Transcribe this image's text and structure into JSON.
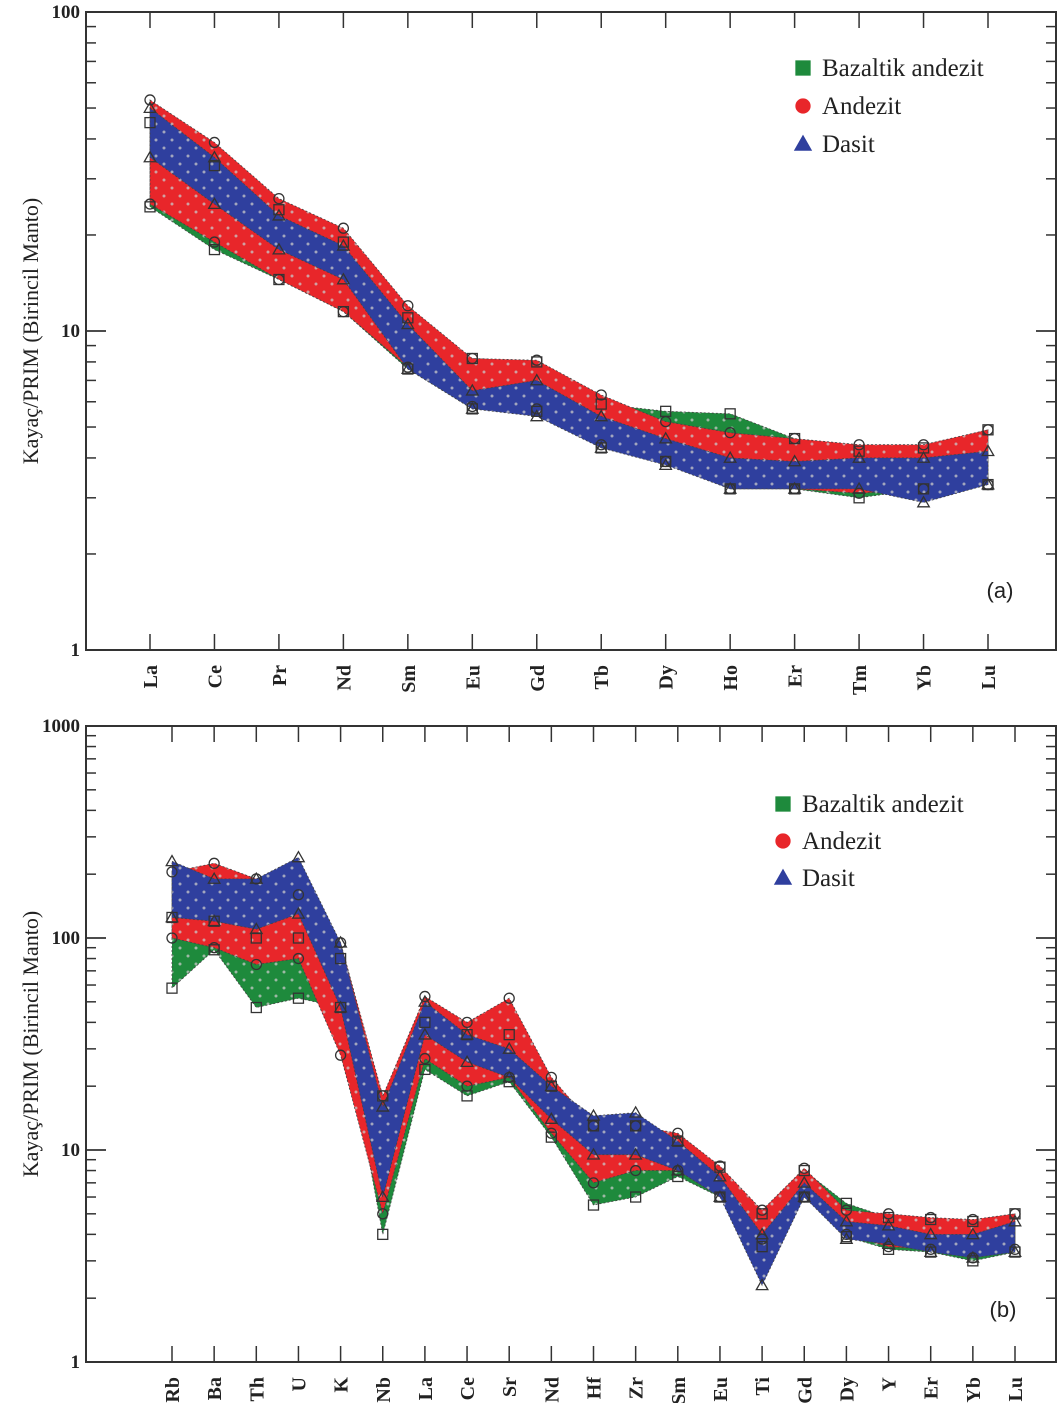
{
  "colors": {
    "green": "#1e8a3c",
    "red": "#e8262a",
    "blue": "#2f3f9e",
    "dot": "#c8c8c8",
    "axis": "#333333"
  },
  "chart_data": [
    {
      "type": "area",
      "panel_label": "(a)",
      "ylabel": "Kayaç/PRIM (Birincil Manto)",
      "xlabel": "",
      "yscale": "log",
      "ylim": [
        1,
        100
      ],
      "ytick_labels": [
        "1",
        "10",
        "100"
      ],
      "categories": [
        "La",
        "Ce",
        "Pr",
        "Nd",
        "Sm",
        "Eu",
        "Gd",
        "Tb",
        "Dy",
        "Ho",
        "Er",
        "Tm",
        "Yb",
        "Lu"
      ],
      "legend_position": "top-right",
      "series": [
        {
          "name": "Bazaltik andezit",
          "color": "green",
          "marker": "square",
          "min": [
            24.5,
            18,
            14.5,
            11.5,
            7.6,
            5.7,
            5.6,
            4.3,
            3.9,
            3.2,
            3.2,
            3.0,
            3.2,
            3.3
          ],
          "max": [
            45,
            33,
            24,
            19,
            11,
            8.2,
            8.0,
            5.9,
            5.6,
            5.5,
            4.6,
            4.2,
            4.3,
            4.9
          ]
        },
        {
          "name": "Andezit",
          "color": "red",
          "marker": "circle",
          "min": [
            25,
            19,
            14.5,
            11.5,
            7.7,
            5.8,
            5.7,
            4.4,
            3.9,
            3.2,
            3.2,
            3.1,
            3.2,
            3.3
          ],
          "max": [
            53,
            39,
            26,
            21,
            12,
            8.2,
            8.1,
            6.3,
            5.2,
            4.8,
            4.6,
            4.4,
            4.4,
            4.9
          ]
        },
        {
          "name": "Dasit",
          "color": "blue",
          "marker": "triangle",
          "min": [
            35,
            25,
            18,
            14.5,
            7.6,
            5.7,
            5.4,
            4.3,
            3.8,
            3.2,
            3.2,
            3.2,
            2.9,
            3.3
          ],
          "max": [
            50,
            35,
            23,
            18.5,
            10.5,
            6.5,
            7.0,
            5.4,
            4.6,
            4.0,
            3.9,
            4.0,
            4.0,
            4.2
          ]
        }
      ]
    },
    {
      "type": "area",
      "panel_label": "(b)",
      "ylabel": "Kayaç/PRIM (Birincil Manto)",
      "xlabel": "",
      "yscale": "log",
      "ylim": [
        1,
        1000
      ],
      "ytick_labels": [
        "1",
        "10",
        "100",
        "1000"
      ],
      "categories": [
        "Rb",
        "Ba",
        "Th",
        "U",
        "K",
        "Nb",
        "La",
        "Ce",
        "Sr",
        "Nd",
        "Hf",
        "Zr",
        "Sm",
        "Eu",
        "Ti",
        "Gd",
        "Dy",
        "Y",
        "Er",
        "Yb",
        "Lu"
      ],
      "legend_position": "top-right",
      "series": [
        {
          "name": "Bazaltik andezit",
          "color": "green",
          "marker": "square",
          "min": [
            58,
            88,
            47,
            52,
            47,
            4,
            24,
            18,
            21,
            11.5,
            5.5,
            6.0,
            7.5,
            6.0,
            3.5,
            6.0,
            3.9,
            3.4,
            3.3,
            3.0,
            3.3
          ],
          "max": [
            125,
            120,
            100,
            100,
            80,
            18,
            40,
            35,
            35,
            20,
            13,
            13,
            11,
            8.3,
            5.0,
            8.0,
            5.6,
            4.8,
            4.7,
            4.6,
            5.0
          ]
        },
        {
          "name": "Andezit",
          "color": "red",
          "marker": "circle",
          "min": [
            100,
            90,
            75,
            80,
            28,
            5,
            27,
            20,
            22,
            12,
            7,
            8,
            8,
            6,
            3.8,
            6,
            4.0,
            3.5,
            3.4,
            3.1,
            3.4
          ],
          "max": [
            205,
            225,
            190,
            160,
            95,
            18,
            53,
            40,
            52,
            22,
            13,
            13,
            12,
            8.4,
            5.2,
            8.2,
            5.2,
            5.0,
            4.8,
            4.7,
            5.0
          ]
        },
        {
          "name": "Dasit",
          "color": "blue",
          "marker": "triangle",
          "min": [
            125,
            120,
            110,
            130,
            47,
            6,
            35,
            26,
            22,
            14,
            9.5,
            9.5,
            8,
            6,
            2.3,
            6,
            3.8,
            3.6,
            3.3,
            3.1,
            3.3
          ],
          "max": [
            230,
            190,
            190,
            240,
            95,
            16,
            50,
            35,
            30,
            20,
            14.5,
            15,
            11,
            7.5,
            4.0,
            7.0,
            4.6,
            4.4,
            4.0,
            4.0,
            4.6
          ]
        }
      ]
    }
  ]
}
